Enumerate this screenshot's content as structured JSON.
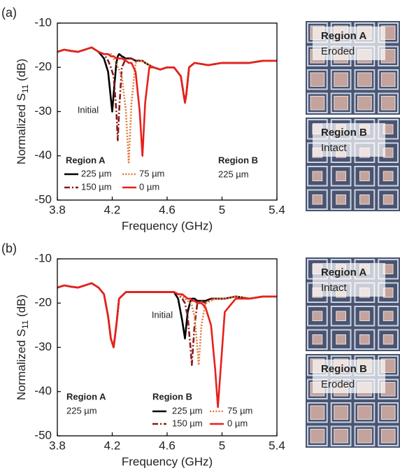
{
  "chart_data": [
    {
      "type": "line",
      "panel": "(a)",
      "xlabel": "Frequency (GHz)",
      "ylabel": [
        "Normalized S",
        "11",
        " (dB)"
      ],
      "xlim": [
        3.8,
        5.4
      ],
      "ylim": [
        -50,
        -10
      ],
      "xticks": [
        3.8,
        4.2,
        4.6,
        5,
        5.4
      ],
      "yticks": [
        -10,
        -20,
        -30,
        -40,
        -50
      ],
      "legend_title": "Region A",
      "note": [
        "Region B",
        "225 µm"
      ],
      "annotation": "Initial",
      "photo": [
        [
          "Region A",
          "Eroded"
        ],
        [
          "Region B",
          "Intact"
        ]
      ],
      "x": [
        3.8,
        3.85,
        3.9,
        3.95,
        4.0,
        4.05,
        4.1,
        4.14,
        4.17,
        4.19,
        4.2,
        4.21,
        4.23,
        4.24,
        4.25,
        4.27,
        4.3,
        4.32,
        4.34,
        4.37,
        4.4,
        4.42,
        4.44,
        4.47,
        4.5,
        4.55,
        4.6,
        4.65,
        4.7,
        4.72,
        4.73,
        4.74,
        4.76,
        4.8,
        4.9,
        5.0,
        5.1,
        5.2,
        5.3,
        5.4
      ],
      "series": [
        {
          "name": "225 µm",
          "color": "#000000",
          "dash": "solid",
          "values": [
            -16.5,
            -16,
            -16.3,
            -16.5,
            -16,
            -15.5,
            -16.5,
            -18,
            -21,
            -27,
            -30,
            -26,
            -19,
            -17.5,
            -17,
            -17.5,
            -18,
            -18,
            -18,
            -18.5,
            -18.5,
            -18.5,
            -19,
            -19.5,
            -20,
            -20.5,
            -20,
            -20,
            -22,
            -26,
            -28,
            -26,
            -20,
            -19,
            -19.5,
            -19,
            -19,
            -19,
            -18.5,
            -18.5
          ]
        },
        {
          "name": "150 µm",
          "color": "#8b1a1a",
          "dash": "dashdot",
          "values": [
            -16.5,
            -16,
            -16.3,
            -16.5,
            -16,
            -15.5,
            -16.5,
            -17,
            -18.5,
            -20,
            -21,
            -22,
            -30,
            -36.5,
            -30,
            -20,
            -18,
            -18,
            -18,
            -18.5,
            -18.5,
            -18.5,
            -19,
            -19.5,
            -20,
            -20.5,
            -20,
            -20,
            -22,
            -26,
            -28,
            -26,
            -20,
            -19,
            -19.5,
            -19,
            -19,
            -19,
            -18.5,
            -18.5
          ]
        },
        {
          "name": "75 µm",
          "color": "#e07b39",
          "dash": "dotted",
          "values": [
            -16.5,
            -16,
            -16.3,
            -16.5,
            -16,
            -15.5,
            -16.5,
            -17,
            -17,
            -17,
            -17.5,
            -18,
            -19,
            -20,
            -20.5,
            -22,
            -30,
            -41.5,
            -28,
            -19,
            -18.5,
            -18.5,
            -19,
            -19.5,
            -20,
            -20.5,
            -20,
            -20,
            -22,
            -26,
            -28,
            -26,
            -20,
            -19,
            -19.5,
            -19,
            -19,
            -19,
            -18.5,
            -18.5
          ]
        },
        {
          "name": "0 µm",
          "color": "#e8201c",
          "dash": "solid",
          "values": [
            -16.5,
            -16,
            -16.3,
            -16.5,
            -16,
            -15.5,
            -16.5,
            -17,
            -17,
            -17.5,
            -17.5,
            -17.5,
            -18,
            -18,
            -18,
            -18,
            -18.5,
            -19,
            -19,
            -21,
            -30,
            -40,
            -28,
            -20,
            -20,
            -20.5,
            -20,
            -20,
            -22,
            -26,
            -28,
            -26,
            -20,
            -19,
            -19.5,
            -19,
            -19,
            -19,
            -18.5,
            -18.5
          ]
        }
      ]
    },
    {
      "type": "line",
      "panel": "(b)",
      "xlabel": "Frequency (GHz)",
      "ylabel": [
        "Normalized S",
        "11",
        " (dB)"
      ],
      "xlim": [
        3.8,
        5.4
      ],
      "ylim": [
        -50,
        -10
      ],
      "xticks": [
        3.8,
        4.2,
        4.6,
        5,
        5.4
      ],
      "yticks": [
        -10,
        -20,
        -30,
        -40,
        -50
      ],
      "legend_title": "Region B",
      "note": [
        "Region A",
        "225 µm"
      ],
      "annotation": "Initial",
      "photo": [
        [
          "Region A",
          "Intact"
        ],
        [
          "Region B",
          "Eroded"
        ]
      ],
      "x": [
        3.8,
        3.85,
        3.9,
        3.95,
        4.0,
        4.05,
        4.1,
        4.14,
        4.17,
        4.19,
        4.21,
        4.23,
        4.25,
        4.3,
        4.4,
        4.5,
        4.55,
        4.6,
        4.65,
        4.68,
        4.71,
        4.73,
        4.75,
        4.77,
        4.78,
        4.8,
        4.82,
        4.83,
        4.85,
        4.88,
        4.92,
        4.95,
        4.97,
        4.99,
        5.02,
        5.1,
        5.2,
        5.3,
        5.4
      ],
      "series": [
        {
          "name": "225 µm",
          "color": "#000000",
          "dash": "solid",
          "values": [
            -16.5,
            -16,
            -16.3,
            -16.5,
            -16,
            -15.5,
            -16.5,
            -18,
            -23,
            -28,
            -30,
            -25,
            -19,
            -17.5,
            -17.5,
            -17.5,
            -17.5,
            -17.5,
            -17.5,
            -19,
            -24,
            -28,
            -22,
            -19.5,
            -19,
            -19,
            -19.5,
            -19.5,
            -19.5,
            -19.5,
            -19,
            -19,
            -19,
            -19,
            -19,
            -18.5,
            -19,
            -18.5,
            -18.5
          ]
        },
        {
          "name": "150 µm",
          "color": "#8b1a1a",
          "dash": "dashdot",
          "values": [
            -16.5,
            -16,
            -16.3,
            -16.5,
            -16,
            -15.5,
            -16.5,
            -18,
            -23,
            -28,
            -30,
            -25,
            -19,
            -17.5,
            -17.5,
            -17.5,
            -17.5,
            -17.5,
            -17.5,
            -18,
            -19,
            -20,
            -23,
            -30,
            -34,
            -25,
            -20,
            -20,
            -19.5,
            -20,
            -19,
            -19,
            -19,
            -19,
            -19,
            -18.5,
            -19,
            -18.5,
            -18.5
          ]
        },
        {
          "name": "75 µm",
          "color": "#e07b39",
          "dash": "dotted",
          "values": [
            -16.5,
            -16,
            -16.3,
            -16.5,
            -16,
            -15.5,
            -16.5,
            -18,
            -23,
            -28,
            -30,
            -25,
            -19,
            -17.5,
            -17.5,
            -17.5,
            -17.5,
            -17.5,
            -17.5,
            -18,
            -18.5,
            -19,
            -19.5,
            -20,
            -20.5,
            -23,
            -30,
            -34,
            -25,
            -20,
            -19.5,
            -19,
            -19,
            -19,
            -19,
            -18.5,
            -19,
            -18.5,
            -18.5
          ]
        },
        {
          "name": "0 µm",
          "color": "#e8201c",
          "dash": "solid",
          "values": [
            -16.5,
            -16,
            -16.3,
            -16.5,
            -16,
            -15.5,
            -16.5,
            -18,
            -23,
            -28,
            -30,
            -25,
            -19,
            -17.5,
            -17.5,
            -17.5,
            -17.5,
            -17.5,
            -17.5,
            -18,
            -18,
            -18.5,
            -19,
            -19,
            -19.5,
            -19.5,
            -20,
            -20,
            -20,
            -21,
            -25,
            -35,
            -43.5,
            -35,
            -22,
            -19,
            -19,
            -18.5,
            -18.5
          ]
        }
      ]
    }
  ]
}
